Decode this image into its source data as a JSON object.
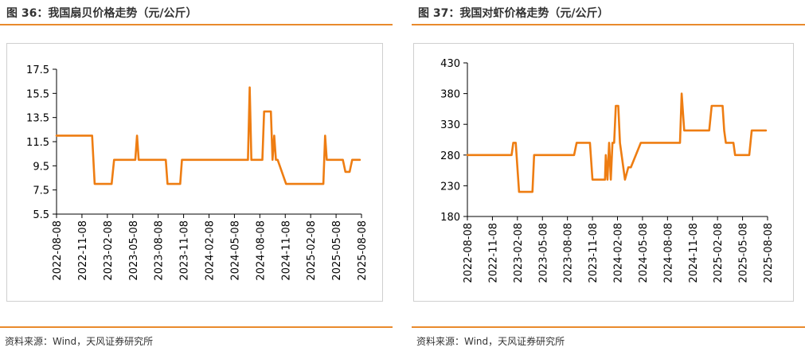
{
  "colors": {
    "accent": "#e98a2c",
    "line": "#ee7d12",
    "axis": "#000000",
    "frame": "#cfcfcf"
  },
  "chart_data": [
    {
      "type": "line",
      "title": "图 36：我国扇贝价格走势（元/公斤）",
      "source": "资料来源：Wind，天风证券研究所",
      "xlabel": "",
      "ylabel": "",
      "ylim": [
        5.5,
        17.5
      ],
      "xlim": [
        0,
        36
      ],
      "yticks": [
        "17.5",
        "15.5",
        "13.5",
        "11.5",
        "9.5",
        "7.5",
        "5.5"
      ],
      "ytick_values": [
        17.5,
        15.5,
        13.5,
        11.5,
        9.5,
        7.5,
        5.5
      ],
      "xticks": [
        "2022-08-08",
        "2022-11-08",
        "2023-02-08",
        "2023-05-08",
        "2023-08-08",
        "2023-11-08",
        "2024-02-08",
        "2024-05-08",
        "2024-08-08",
        "2024-11-08",
        "2025-02-08",
        "2025-05-08",
        "2025-08-08"
      ],
      "xtick_values": [
        0,
        3,
        6,
        9,
        12,
        15,
        18,
        21,
        24,
        27,
        30,
        33,
        36
      ],
      "grid": false,
      "series": [
        {
          "name": "扇贝价格",
          "x": [
            0,
            4.2,
            4.5,
            6.5,
            6.8,
            9.3,
            9.5,
            9.7,
            12.9,
            13.1,
            14.6,
            14.8,
            22.6,
            22.8,
            23,
            24.3,
            24.5,
            25.3,
            25.5,
            25.7,
            25.9,
            26.1,
            27.1,
            27.3,
            31.5,
            31.7,
            31.9,
            33.8,
            34.1,
            34.6,
            34.9,
            35.8
          ],
          "y": [
            12,
            12,
            8,
            8,
            10,
            10,
            12,
            10,
            10,
            8,
            8,
            10,
            10,
            16,
            10,
            10,
            14,
            14,
            10,
            12,
            10,
            10,
            8,
            8,
            8,
            12,
            10,
            10,
            9,
            9,
            10,
            10
          ]
        }
      ]
    },
    {
      "type": "line",
      "title": "图 37：我国对虾价格走势（元/公斤）",
      "source": "资料来源：Wind，天风证券研究所",
      "xlabel": "",
      "ylabel": "",
      "ylim": [
        180,
        430
      ],
      "xlim": [
        0,
        36
      ],
      "yticks": [
        "430",
        "380",
        "330",
        "280",
        "230",
        "180"
      ],
      "ytick_values": [
        430,
        380,
        330,
        280,
        230,
        180
      ],
      "xticks": [
        "2022-08-08",
        "2022-11-08",
        "2023-02-08",
        "2023-05-08",
        "2023-08-08",
        "2023-11-08",
        "2024-02-08",
        "2024-05-08",
        "2024-08-08",
        "2024-11-08",
        "2025-02-08",
        "2025-05-08",
        "2025-08-08"
      ],
      "xtick_values": [
        0,
        3,
        6,
        9,
        12,
        15,
        18,
        21,
        24,
        27,
        30,
        33,
        36
      ],
      "grid": false,
      "series": [
        {
          "name": "对虾价格",
          "x": [
            0,
            5.3,
            5.5,
            5.8,
            6.2,
            7.8,
            8.0,
            12.8,
            13.1,
            14.7,
            15.0,
            16.5,
            16.6,
            16.8,
            17.0,
            17.2,
            17.4,
            17.6,
            17.8,
            18.1,
            18.3,
            18.5,
            18.9,
            19.3,
            19.6,
            20.8,
            25.5,
            25.7,
            26.0,
            27.2,
            29.0,
            29.3,
            30.6,
            30.8,
            31.0,
            31.9,
            32.1,
            33.8,
            34.1,
            35.8
          ],
          "y": [
            280,
            280,
            300,
            300,
            220,
            220,
            280,
            280,
            300,
            300,
            240,
            240,
            280,
            240,
            300,
            240,
            300,
            300,
            360,
            360,
            300,
            280,
            240,
            260,
            260,
            300,
            300,
            380,
            320,
            320,
            320,
            360,
            360,
            320,
            300,
            300,
            280,
            280,
            320,
            320
          ]
        }
      ]
    }
  ]
}
